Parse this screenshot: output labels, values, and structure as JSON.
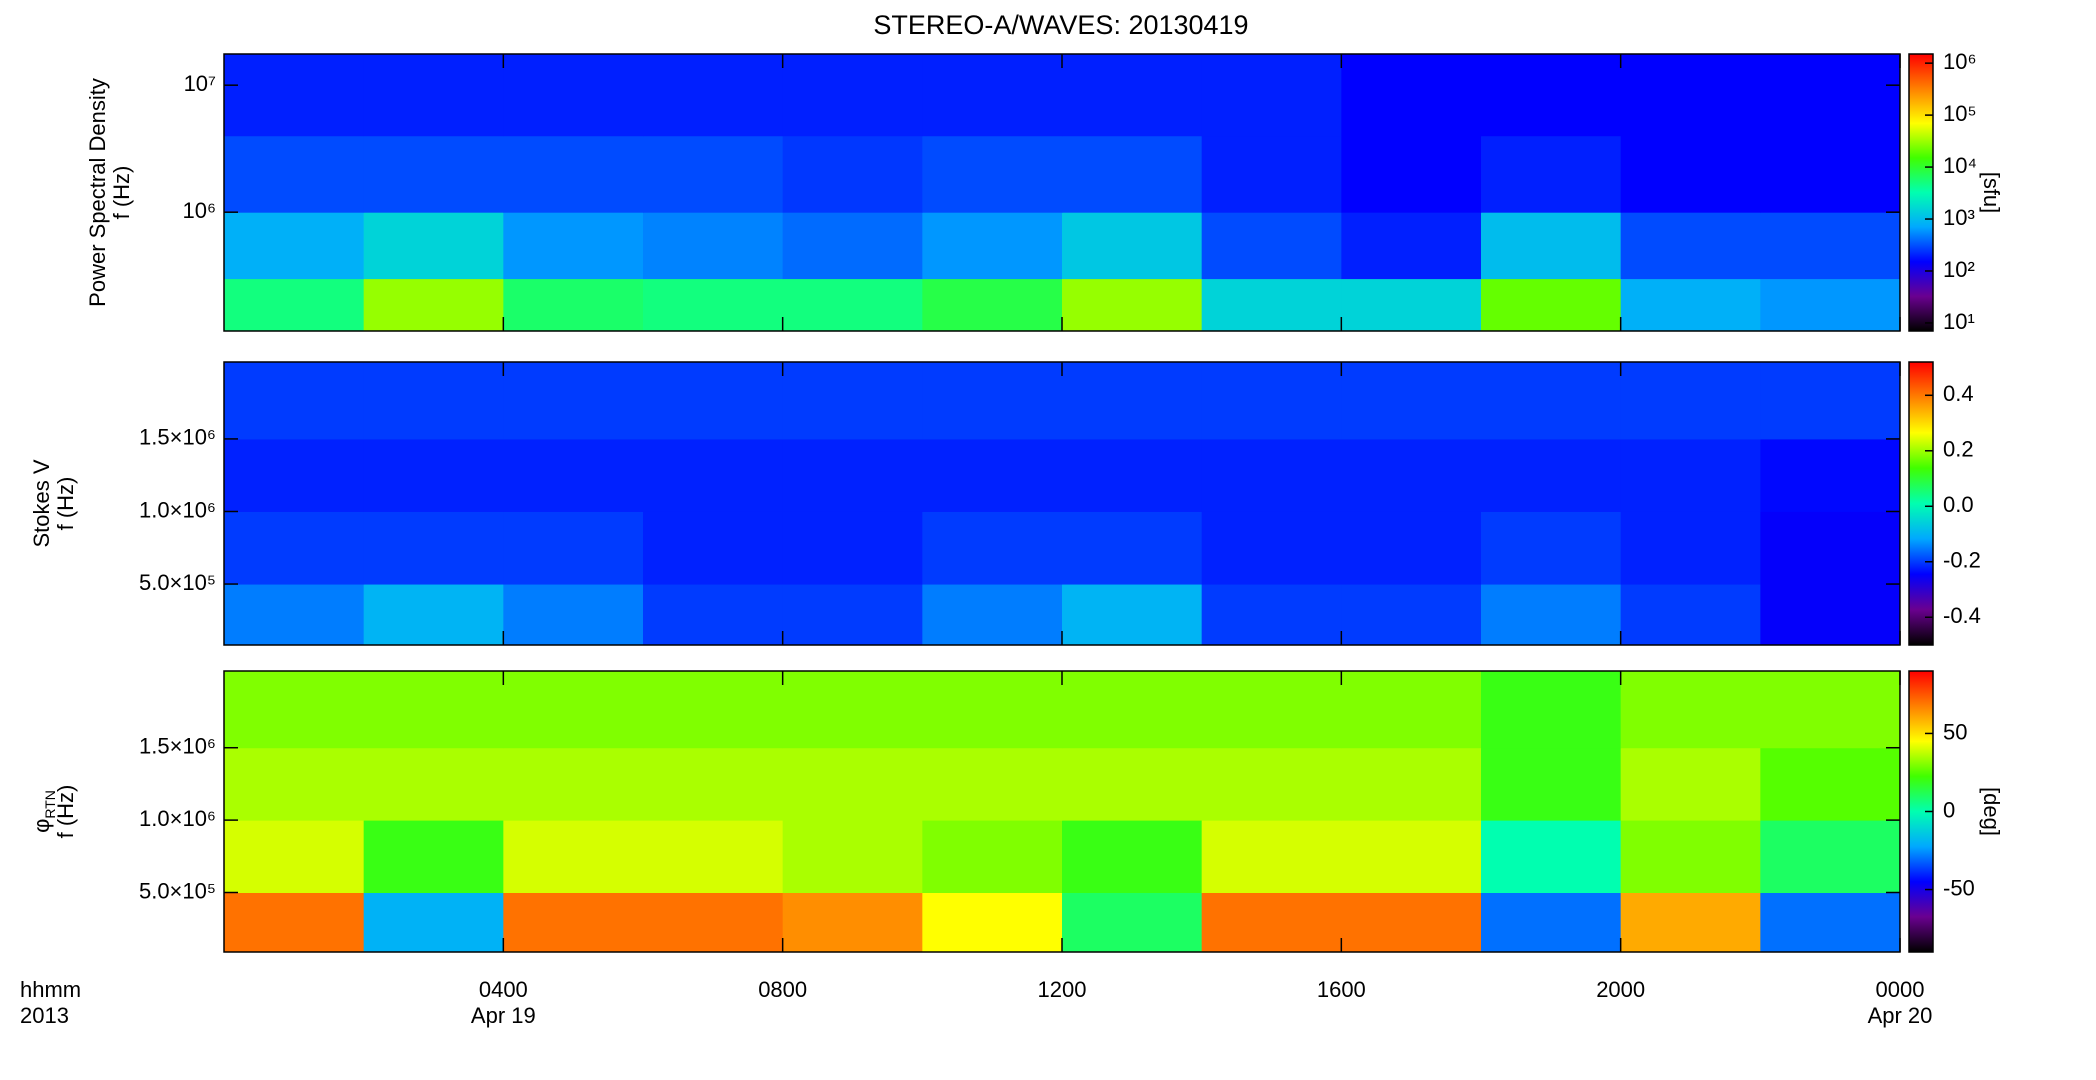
{
  "title": "STEREO-A/WAVES: 20130419",
  "corner_labels": [
    "hhmm",
    "2013"
  ],
  "chart_data": [
    {
      "type": "heatmap",
      "ylabel": [
        "Power Spectral Density",
        "f (Hz)"
      ],
      "ylog": true,
      "ylim": [
        116000,
        17600000
      ],
      "yticks": [
        {
          "value": 1000000,
          "label": "10⁶"
        },
        {
          "value": 10000000,
          "label": "10⁷"
        }
      ],
      "x_edges": [
        0,
        2,
        4,
        6,
        8,
        10,
        12,
        14,
        16,
        18,
        20,
        22,
        24
      ],
      "y_edges": [
        116000,
        300000,
        1000000,
        4000000,
        17600000
      ],
      "z": [
        [
          5000,
          30000,
          6000,
          5000,
          5000,
          8000,
          30000,
          1500,
          1500,
          20000,
          800,
          600
        ],
        [
          800,
          1500,
          600,
          500,
          400,
          600,
          1200,
          300,
          200,
          1000,
          300,
          300
        ],
        [
          300,
          300,
          300,
          300,
          250,
          300,
          300,
          200,
          150,
          200,
          150,
          150
        ],
        [
          200,
          200,
          200,
          200,
          200,
          200,
          200,
          200,
          150,
          150,
          150,
          150
        ]
      ],
      "clog": true,
      "clim": [
        7,
        1500000
      ],
      "cticks": [
        {
          "value": 10,
          "label": "10¹"
        },
        {
          "value": 100,
          "label": "10²"
        },
        {
          "value": 1000,
          "label": "10³"
        },
        {
          "value": 10000,
          "label": "10⁴"
        },
        {
          "value": 100000,
          "label": "10⁵"
        },
        {
          "value": 1000000,
          "label": "10⁶"
        }
      ],
      "clabel": "[sfu]",
      "colormap": [
        "#000000",
        "#6a0090",
        "#0000ff",
        "#00a8ff",
        "#00ffb0",
        "#40ff00",
        "#ffff00",
        "#ff8000",
        "#ff0000"
      ]
    },
    {
      "type": "heatmap",
      "ylabel": [
        "Stokes V",
        "f (Hz)"
      ],
      "ylog": false,
      "ylim": [
        80000,
        2030000
      ],
      "yticks": [
        {
          "value": 500000,
          "label": "5.0×10⁵"
        },
        {
          "value": 1000000,
          "label": "1.0×10⁶"
        },
        {
          "value": 1500000,
          "label": "1.5×10⁶"
        }
      ],
      "x_edges": [
        0,
        2,
        4,
        6,
        8,
        10,
        12,
        14,
        16,
        18,
        20,
        22,
        24
      ],
      "y_edges": [
        80000,
        500000,
        1000000,
        1500000,
        2030000
      ],
      "z": [
        [
          -0.15,
          -0.1,
          -0.15,
          -0.2,
          -0.2,
          -0.15,
          -0.1,
          -0.2,
          -0.2,
          -0.15,
          -0.2,
          -0.25
        ],
        [
          -0.2,
          -0.2,
          -0.2,
          -0.22,
          -0.22,
          -0.2,
          -0.2,
          -0.22,
          -0.22,
          -0.2,
          -0.22,
          -0.25
        ],
        [
          -0.22,
          -0.22,
          -0.22,
          -0.22,
          -0.22,
          -0.22,
          -0.22,
          -0.22,
          -0.22,
          -0.22,
          -0.22,
          -0.24
        ],
        [
          -0.2,
          -0.2,
          -0.2,
          -0.2,
          -0.2,
          -0.2,
          -0.2,
          -0.2,
          -0.2,
          -0.2,
          -0.2,
          -0.2
        ]
      ],
      "clog": false,
      "clim": [
        -0.5,
        0.52
      ],
      "cticks": [
        -0.4,
        -0.2,
        {
          "value": 0,
          "label": "0.0"
        },
        0.2,
        0.4
      ],
      "colormap": [
        "#000000",
        "#6a0090",
        "#0000ff",
        "#00a8ff",
        "#00ffb0",
        "#40ff00",
        "#ffff00",
        "#ff8000",
        "#ff0000"
      ]
    },
    {
      "type": "heatmap",
      "ylabel": [
        "φ",
        "f (Hz)"
      ],
      "ylabel_sub": "RTN",
      "ylog": false,
      "ylim": [
        89000,
        2030000
      ],
      "yticks": [
        {
          "value": 500000,
          "label": "5.0×10⁵"
        },
        {
          "value": 1000000,
          "label": "1.0×10⁶"
        },
        {
          "value": 1500000,
          "label": "1.5×10⁶"
        }
      ],
      "x_edges": [
        0,
        2,
        4,
        6,
        8,
        10,
        12,
        14,
        16,
        18,
        20,
        22,
        24
      ],
      "y_edges": [
        89000,
        500000,
        1000000,
        1500000,
        2030000
      ],
      "z": [
        [
          70,
          -20,
          70,
          70,
          65,
          45,
          10,
          70,
          70,
          -30,
          60,
          -30
        ],
        [
          40,
          20,
          40,
          40,
          35,
          30,
          20,
          40,
          40,
          0,
          30,
          10
        ],
        [
          35,
          35,
          35,
          35,
          35,
          35,
          35,
          35,
          35,
          20,
          35,
          25
        ],
        [
          30,
          30,
          30,
          30,
          30,
          30,
          30,
          30,
          30,
          20,
          30,
          30
        ]
      ],
      "clog": false,
      "clim": [
        -90,
        90
      ],
      "cticks": [
        -50,
        0,
        50
      ],
      "clabel": "[deg]",
      "colormap": [
        "#000000",
        "#6a0090",
        "#0000ff",
        "#00a8ff",
        "#00ffb0",
        "#40ff00",
        "#ffff00",
        "#ff8000",
        "#ff0000"
      ],
      "xlim": [
        0,
        24
      ],
      "xticks": [
        {
          "value": 4,
          "label": "0400"
        },
        {
          "value": 8,
          "label": "0800"
        },
        {
          "value": 12,
          "label": "1200"
        },
        {
          "value": 16,
          "label": "1600"
        },
        {
          "value": 20,
          "label": "2000"
        },
        {
          "value": 24,
          "label": "0000"
        }
      ],
      "date_labels": [
        {
          "value": 4,
          "label": "Apr 19"
        },
        {
          "value": 24,
          "label": "Apr 20"
        }
      ]
    }
  ]
}
